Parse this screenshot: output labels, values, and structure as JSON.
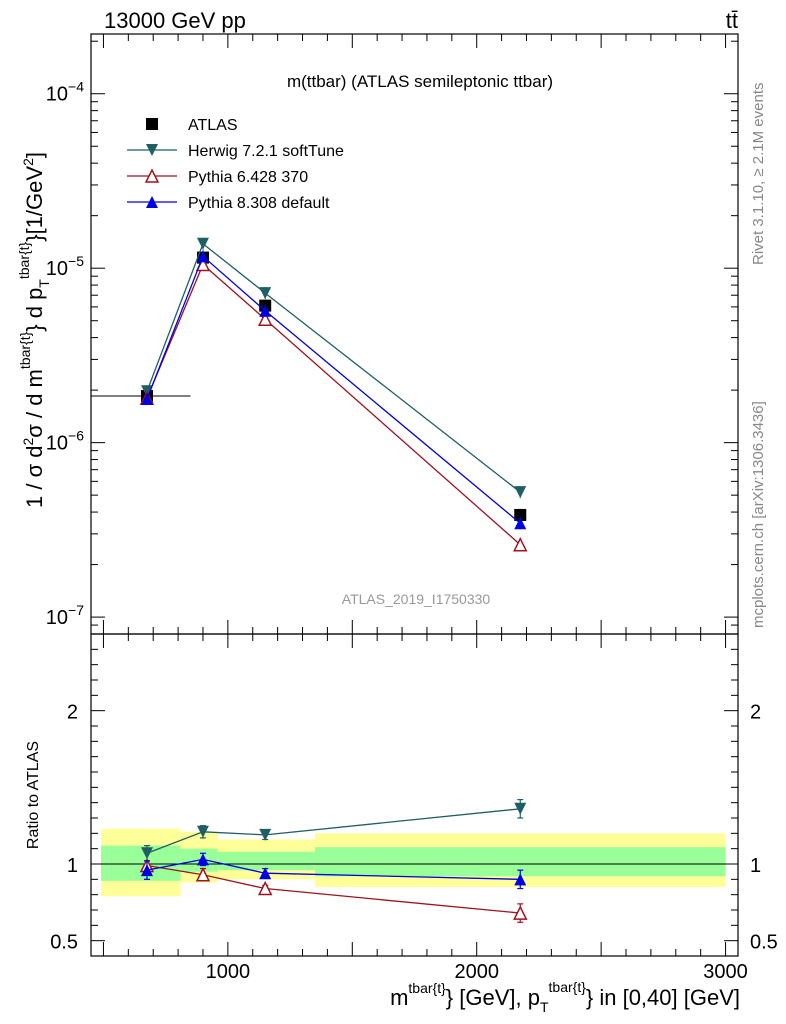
{
  "header": {
    "left": "13000 GeV pp",
    "right": "tt̄"
  },
  "side_labels": {
    "rivet": "Rivet 3.1.10, ≥ 2.1M events",
    "mcplots": "mcplots.cern.ch [arXiv:1306.3436]"
  },
  "chart_data": [
    {
      "type": "scatter",
      "title": "m(ttbar) (ATLAS semileptonic ttbar)",
      "watermark": "ATLAS_2019_I1750330",
      "ylabel": "1 / σ d²σ / d m^{tbar{t}} d p_T^{tbar{t}} [1/GeV²]",
      "yscale": "log",
      "ylim": [
        8e-08,
        0.00022
      ],
      "y_ticks": [
        "10^{-7}",
        "10^{-6}",
        "10^{-5}",
        "10^{-4}"
      ],
      "xlim": [
        450,
        3050
      ],
      "x": [
        675,
        900,
        1150,
        2175
      ],
      "legend_position": "top-left",
      "series": [
        {
          "name": "ATLAS",
          "color": "#000000",
          "marker": "square",
          "values": [
            1.85e-06,
            1.15e-05,
            6.1e-06,
            3.85e-07
          ],
          "xerr_low": [
            225,
            0,
            0,
            0
          ],
          "xerr_high": [
            175,
            0,
            0,
            0
          ]
        },
        {
          "name": "Herwig 7.2.1 softTune",
          "color": "#1f5f64",
          "marker": "triangle-down",
          "values": [
            1.97e-06,
            1.38e-05,
            7.2e-06,
            5.2e-07
          ]
        },
        {
          "name": "Pythia 6.428 370",
          "color": "#a0121e",
          "marker": "triangle-up-open",
          "values": [
            1.8e-06,
            1.05e-05,
            5.1e-06,
            2.6e-07
          ]
        },
        {
          "name": "Pythia 8.308 default",
          "color": "#0000e0",
          "marker": "triangle-up",
          "values": [
            1.78e-06,
            1.17e-05,
            5.7e-06,
            3.45e-07
          ]
        }
      ]
    },
    {
      "type": "scatter",
      "ylabel": "Ratio to ATLAS",
      "xlabel": "m^{tbar{t}} [GeV], p_T^{tbar{t}} in [0,40] [GeV]",
      "xlim": [
        450,
        3050
      ],
      "x_ticks": [
        1000,
        2000,
        3000
      ],
      "ylim": [
        0.4,
        2.5
      ],
      "y_ticks": [
        0.5,
        1,
        2
      ],
      "x": [
        675,
        900,
        1150,
        2175
      ],
      "bands": [
        {
          "x_low": 450,
          "x_high": 810,
          "stat_low": 0.89,
          "stat_high": 1.12,
          "tot_low": 0.79,
          "tot_high": 1.23
        },
        {
          "x_low": 810,
          "x_high": 960,
          "stat_low": 0.95,
          "stat_high": 1.1,
          "tot_low": 0.88,
          "tot_high": 1.21
        },
        {
          "x_low": 960,
          "x_high": 1350,
          "stat_low": 0.96,
          "stat_high": 1.08,
          "tot_low": 0.9,
          "tot_high": 1.16
        },
        {
          "x_low": 1350,
          "x_high": 3000,
          "stat_low": 0.92,
          "stat_high": 1.11,
          "tot_low": 0.85,
          "tot_high": 1.2
        }
      ],
      "series": [
        {
          "name": "Herwig 7.2.1 softTune",
          "values": [
            1.07,
            1.21,
            1.19,
            1.36
          ],
          "err": [
            0.05,
            0.04,
            0.03,
            0.06
          ]
        },
        {
          "name": "Pythia 6.428 370",
          "values": [
            0.99,
            0.93,
            0.84,
            0.68
          ],
          "err": [
            0.03,
            0.04,
            0.02,
            0.06
          ]
        },
        {
          "name": "Pythia 8.308 default",
          "values": [
            0.96,
            1.03,
            0.94,
            0.9
          ],
          "err": [
            0.06,
            0.04,
            0.03,
            0.06
          ]
        }
      ]
    }
  ]
}
